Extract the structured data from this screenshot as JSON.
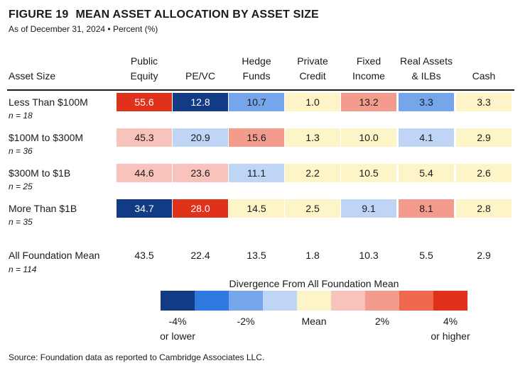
{
  "figure": {
    "number": "FIGURE 19",
    "title": "MEAN ASSET ALLOCATION BY ASSET SIZE",
    "subtitle": "As of December 31, 2024 • Percent (%)"
  },
  "colors": {
    "scale": [
      "#123a85",
      "#2f78e0",
      "#75a5ea",
      "#bfd5f6",
      "#fdf4c8",
      "#f7c3bb",
      "#f39b8c",
      "#ef674d",
      "#e0321a"
    ],
    "text_light": "#ffffff",
    "text_dark": "#1a1a1a"
  },
  "chart_data": {
    "type": "table",
    "row_header": "Asset Size",
    "columns": [
      {
        "line1": "Public",
        "line2": "Equity"
      },
      {
        "line1": "",
        "line2": "PE/VC"
      },
      {
        "line1": "Hedge",
        "line2": "Funds"
      },
      {
        "line1": "Private",
        "line2": "Credit"
      },
      {
        "line1": "Fixed",
        "line2": "Income"
      },
      {
        "line1": "Real Assets",
        "line2": "& ILBs"
      },
      {
        "line1": "",
        "line2": "Cash"
      }
    ],
    "rows": [
      {
        "label": "Less Than $100M",
        "n": "n = 18",
        "values": [
          "55.6",
          "12.8",
          "10.7",
          "1.0",
          "13.2",
          "3.3",
          "3.3"
        ],
        "levels": [
          8,
          0,
          2,
          4,
          6,
          2,
          4
        ]
      },
      {
        "label": "$100M to $300M",
        "n": "n = 36",
        "values": [
          "45.3",
          "20.9",
          "15.6",
          "1.3",
          "10.0",
          "4.1",
          "2.9"
        ],
        "levels": [
          5,
          3,
          6,
          4,
          4,
          3,
          4
        ]
      },
      {
        "label": "$300M to $1B",
        "n": "n = 25",
        "values": [
          "44.6",
          "23.6",
          "11.1",
          "2.2",
          "10.5",
          "5.4",
          "2.6"
        ],
        "levels": [
          5,
          5,
          3,
          4,
          4,
          4,
          4
        ]
      },
      {
        "label": "More Than $1B",
        "n": "n = 35",
        "values": [
          "34.7",
          "28.0",
          "14.5",
          "2.5",
          "9.1",
          "8.1",
          "2.8"
        ],
        "levels": [
          0,
          8,
          4,
          4,
          3,
          6,
          4
        ]
      }
    ],
    "mean_row": {
      "label": "All Foundation Mean",
      "n": "n = 114",
      "values": [
        "43.5",
        "22.4",
        "13.5",
        "1.8",
        "10.3",
        "5.5",
        "2.9"
      ]
    },
    "legend": {
      "title": "Divergence From All Foundation Mean",
      "labels": [
        {
          "line1": "-4%",
          "line2": "or lower"
        },
        {
          "line1": "-2%",
          "line2": ""
        },
        {
          "line1": "Mean",
          "line2": ""
        },
        {
          "line1": "2%",
          "line2": ""
        },
        {
          "line1": "4%",
          "line2": "or higher"
        }
      ]
    }
  },
  "source": "Source: Foundation data as reported to Cambridge Associates LLC."
}
